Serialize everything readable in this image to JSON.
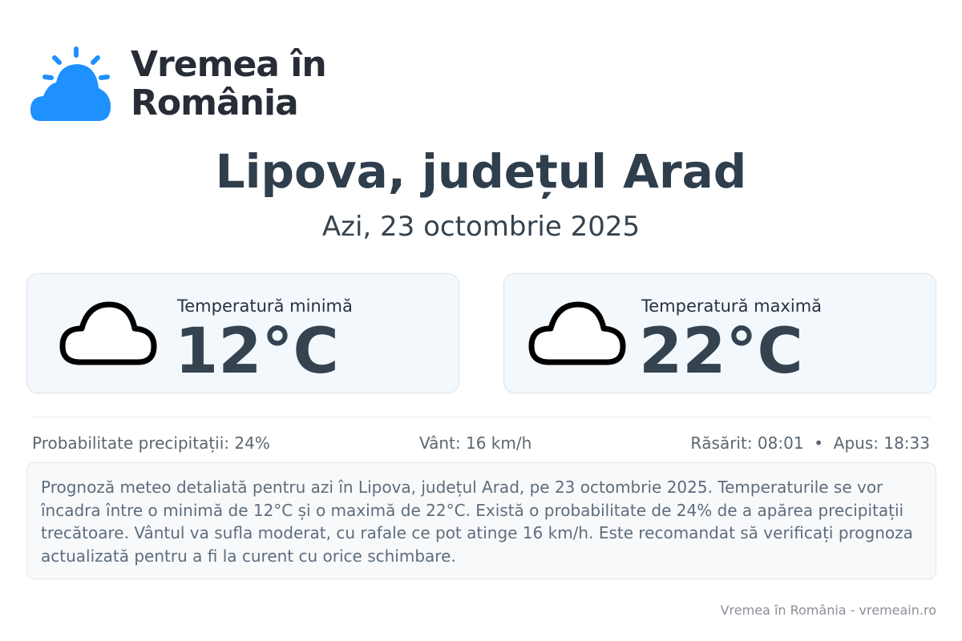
{
  "brand": {
    "name_line1": "Vremea în",
    "name_line2": "România",
    "logo_color": "#1e90ff"
  },
  "header": {
    "title": "Lipova, județul Arad",
    "subtitle": "Azi, 23 octombrie 2025"
  },
  "cards": [
    {
      "icon": "cloud-icon",
      "label": "Temperatură minimă",
      "value": "12°C"
    },
    {
      "icon": "cloud-icon",
      "label": "Temperatură maximă",
      "value": "22°C"
    }
  ],
  "stats": {
    "precipitation": "Probabilitate precipitații: 24%",
    "wind": "Vânt: 16 km/h",
    "sun": "Răsărit: 08:01  •  Apus: 18:33"
  },
  "description": "Prognoză meteo detaliată pentru azi în Lipova, județul Arad, pe 23 octombrie 2025. Temperaturile se vor încadra între o minimă de 12°C și o maximă de 22°C. Există o probabilitate de 24% de a apărea precipitații trecătoare. Vântul va sufla moderat, cu rafale ce pot atinge 16 km/h. Este recomandat să verificați prognoza actualizată pentru a fi la curent cu orice schimbare.",
  "footer": "Vremea în România - vremeain.ro"
}
